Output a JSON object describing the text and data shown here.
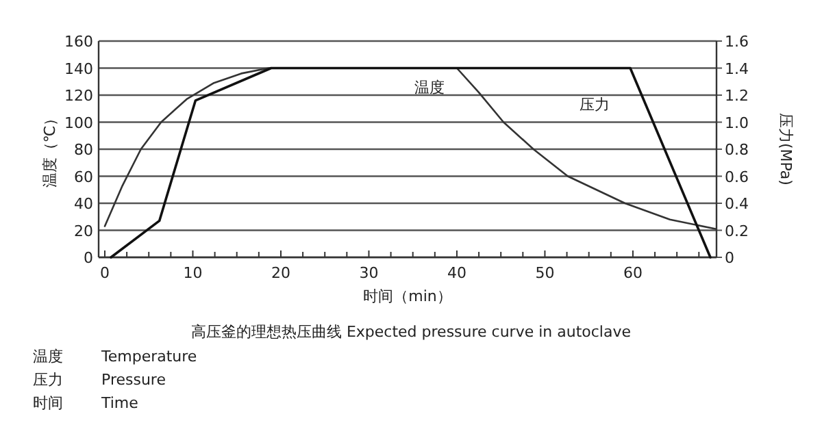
{
  "chart_data": {
    "type": "line",
    "title": "高压釜的理想热压曲线  Expected pressure curve in autoclave",
    "xlabel": "时间（min）",
    "ylabel": "温度（℃）",
    "y2label": "压力(MPa)",
    "annotations": [
      "温度",
      "Temperature",
      "压力",
      "Pressure",
      "时间",
      "Time"
    ],
    "xlim": [
      -0.7,
      69.5
    ],
    "ylim": [
      0,
      160
    ],
    "y2lim": [
      0,
      1.6
    ],
    "xticks": [
      0,
      {
        "value": 2.5,
        "label": null
      },
      {
        "value": 5,
        "label": null
      },
      {
        "value": 7.5,
        "label": null
      },
      10,
      {
        "value": 12.5,
        "label": null
      },
      {
        "value": 15,
        "label": null
      },
      {
        "value": 17.5,
        "label": null
      },
      20,
      {
        "value": 22.5,
        "label": null
      },
      {
        "value": 25,
        "label": null
      },
      {
        "value": 27.5,
        "label": null
      },
      30,
      {
        "value": 32.5,
        "label": null
      },
      {
        "value": 35,
        "label": null
      },
      {
        "value": 37.5,
        "label": null
      },
      40,
      {
        "value": 42.5,
        "label": null
      },
      {
        "value": 45,
        "label": null
      },
      {
        "value": 47.5,
        "label": null
      },
      50,
      {
        "value": 52.5,
        "label": null
      },
      {
        "value": 55,
        "label": null
      },
      {
        "value": 57.5,
        "label": null
      },
      60,
      {
        "value": 62.5,
        "label": null
      },
      {
        "value": 65,
        "label": null
      },
      {
        "value": 67.5,
        "label": null
      }
    ],
    "yticks": [
      0,
      20,
      40,
      60,
      80,
      100,
      120,
      140,
      160
    ],
    "y2ticks": [
      0,
      0.2,
      0.4,
      0.6,
      0.8,
      {
        "value": 1,
        "label": "1.0"
      },
      1.2,
      1.4,
      1.6
    ],
    "grid": "y",
    "legend": false,
    "marker": "none",
    "line_style": "solid",
    "series": [
      {
        "name": "温度",
        "color": "#333333",
        "x": [
          0,
          2,
          4.1,
          6.4,
          9.3,
          12.4,
          15.5,
          18.6,
          40,
          42.5,
          45.3,
          48.7,
          52.6,
          59.1,
          64.2,
          69.4
        ],
        "values": [
          23,
          53,
          80,
          100,
          117,
          129,
          136,
          140,
          140,
          122,
          100,
          80,
          60,
          40,
          28,
          21
        ]
      },
      {
        "name": "压力",
        "color": "#111111",
        "axis": "y2",
        "x": [
          0.7,
          6.2,
          10.3,
          18.9,
          59.7,
          68.8
        ],
        "values": [
          0,
          0.27,
          1.16,
          1.4,
          1.4,
          0
        ]
      }
    ]
  }
}
